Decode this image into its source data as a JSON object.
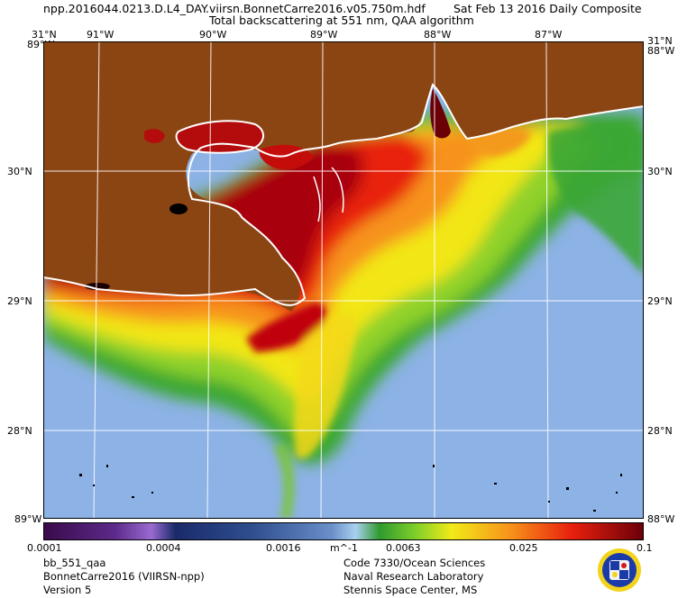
{
  "header": {
    "filename": "npp.2016044.0213.D.L4_DAY.viirsn.BonnetCarre2016.v05.750m.hdf",
    "composite": "Sat Feb 13 2016 Daily Composite",
    "product": "Total backscattering at 551 nm, QAA algorithm"
  },
  "axes": {
    "lon_ticks": [
      "91°W",
      "90°W",
      "89°W",
      "88°W",
      "87°W"
    ],
    "lat_ticks": [
      "30°N",
      "29°N",
      "28°N"
    ],
    "corner_top_left": "31°N",
    "corner_top_right": "31°N",
    "corner_top_left_lon": "89°W",
    "corner_top_right_lon": "88°W",
    "corner_bottom_left": "89°W",
    "corner_bottom_right": "88°W",
    "lon_range": [
      -91.5,
      -86.2
    ],
    "lat_range": [
      27.3,
      31.0
    ]
  },
  "colorbar": {
    "labels": [
      "0.0001",
      "0.0004",
      "0.0016",
      "m^-1",
      "0.0063",
      "0.025",
      "0.1"
    ],
    "scale": "log"
  },
  "footer": {
    "left": [
      "bb_551_qaa",
      "BonnetCarre2016 (VIIRSN-npp)",
      "Version 5"
    ],
    "right": [
      "Code 7330/Ocean Sciences",
      "Naval Research Laboratory",
      "Stennis Space Center, MS"
    ]
  },
  "colors": {
    "land": "#8b4513",
    "ocean": "#8fb3e6",
    "coast": "#ffffff",
    "grid": "#ffffff"
  },
  "logo": "naval-research-laboratory-seal"
}
